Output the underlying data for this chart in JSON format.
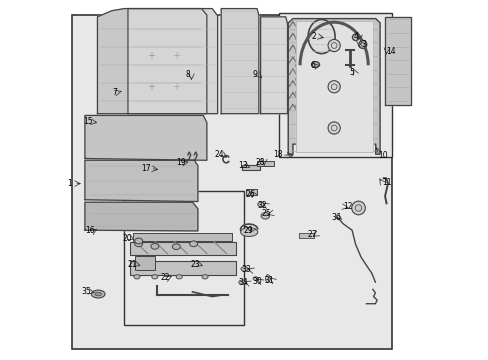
{
  "background_color": "#ffffff",
  "diagram_bg": "#e8e8e8",
  "border_color": "#333333",
  "line_color": "#444444",
  "text_color": "#000000",
  "figsize": [
    4.89,
    3.6
  ],
  "dpi": 100
}
